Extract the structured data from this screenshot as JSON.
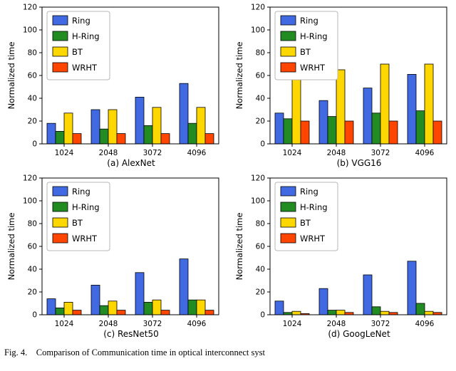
{
  "caption": "Fig. 4.    Comparison of Communication time in optical interconnect syst",
  "colors": {
    "ring": "#4169e1",
    "h_ring": "#228b22",
    "bt": "#ffd700",
    "wrht": "#ff4500"
  },
  "chart_data": [
    {
      "type": "bar",
      "title": "(a) AlexNet",
      "ylabel": "Normalized time",
      "ylim": [
        0,
        120
      ],
      "yticks": [
        0,
        20,
        40,
        60,
        80,
        100,
        120
      ],
      "categories": [
        "1024",
        "2048",
        "3072",
        "4096"
      ],
      "legend_position": "upper left",
      "grid": false,
      "series": [
        {
          "name": "Ring",
          "color": "#4169e1",
          "values": [
            18,
            30,
            41,
            53
          ]
        },
        {
          "name": "H-Ring",
          "color": "#228b22",
          "values": [
            11,
            13,
            16,
            18
          ]
        },
        {
          "name": "BT",
          "color": "#ffd700",
          "values": [
            27,
            30,
            32,
            32
          ]
        },
        {
          "name": "WRHT",
          "color": "#ff4500",
          "values": [
            9,
            9,
            9,
            9
          ]
        }
      ]
    },
    {
      "type": "bar",
      "title": "(b) VGG16",
      "ylabel": "Normalized time",
      "ylim": [
        0,
        120
      ],
      "yticks": [
        0,
        20,
        40,
        60,
        80,
        100,
        120
      ],
      "categories": [
        "1024",
        "2048",
        "3072",
        "4096"
      ],
      "legend_position": "upper left",
      "grid": false,
      "series": [
        {
          "name": "Ring",
          "color": "#4169e1",
          "values": [
            27,
            38,
            49,
            61
          ]
        },
        {
          "name": "H-Ring",
          "color": "#228b22",
          "values": [
            22,
            24,
            27,
            29
          ]
        },
        {
          "name": "BT",
          "color": "#ffd700",
          "values": [
            60,
            65,
            70,
            70
          ]
        },
        {
          "name": "WRHT",
          "color": "#ff4500",
          "values": [
            20,
            20,
            20,
            20
          ]
        }
      ]
    },
    {
      "type": "bar",
      "title": "(c) ResNet50",
      "ylabel": "Normalized time",
      "ylim": [
        0,
        120
      ],
      "yticks": [
        0,
        20,
        40,
        60,
        80,
        100,
        120
      ],
      "categories": [
        "1024",
        "2048",
        "3072",
        "4096"
      ],
      "legend_position": "upper left",
      "grid": false,
      "series": [
        {
          "name": "Ring",
          "color": "#4169e1",
          "values": [
            14,
            26,
            37,
            49
          ]
        },
        {
          "name": "H-Ring",
          "color": "#228b22",
          "values": [
            6,
            8,
            11,
            13
          ]
        },
        {
          "name": "BT",
          "color": "#ffd700",
          "values": [
            11,
            12,
            13,
            13
          ]
        },
        {
          "name": "WRHT",
          "color": "#ff4500",
          "values": [
            4,
            4,
            4,
            4
          ]
        }
      ]
    },
    {
      "type": "bar",
      "title": "(d) GoogLeNet",
      "ylabel": "Normalized time",
      "ylim": [
        0,
        120
      ],
      "yticks": [
        0,
        20,
        40,
        60,
        80,
        100,
        120
      ],
      "categories": [
        "1024",
        "2048",
        "3072",
        "4096"
      ],
      "legend_position": "upper left",
      "grid": false,
      "series": [
        {
          "name": "Ring",
          "color": "#4169e1",
          "values": [
            12,
            23,
            35,
            47
          ]
        },
        {
          "name": "H-Ring",
          "color": "#228b22",
          "values": [
            2,
            4,
            7,
            10
          ]
        },
        {
          "name": "BT",
          "color": "#ffd700",
          "values": [
            3,
            4,
            3,
            3
          ]
        },
        {
          "name": "WRHT",
          "color": "#ff4500",
          "values": [
            1,
            2,
            2,
            2
          ]
        }
      ]
    }
  ]
}
